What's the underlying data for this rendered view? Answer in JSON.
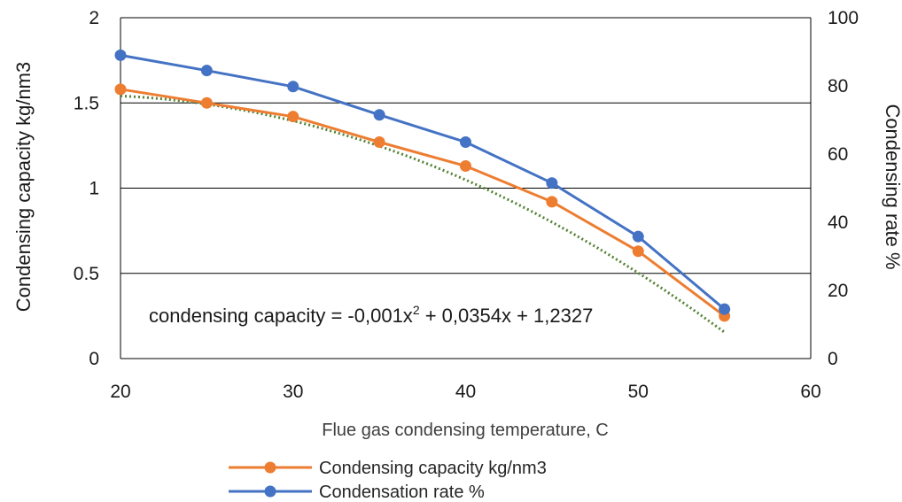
{
  "chart_data": {
    "type": "line",
    "xlabel": "Flue gas condensing temperature, C",
    "ylabel_left": "Condensing capacity kg/nm3",
    "ylabel_right": "Condensing rate %",
    "xlim": [
      20,
      60
    ],
    "ylim_left": [
      0,
      2
    ],
    "ylim_right": [
      0,
      100
    ],
    "x_ticks": [
      "20",
      "30",
      "40",
      "50",
      "60"
    ],
    "y_left_ticks": [
      "0",
      "0.5",
      "1",
      "1.5",
      "2"
    ],
    "y_right_ticks": [
      "0",
      "20",
      "40",
      "60",
      "80",
      "100"
    ],
    "gridlines_left": [
      0.5,
      1.0,
      1.5
    ],
    "x": [
      20,
      25,
      30,
      35,
      40,
      45,
      50,
      55
    ],
    "series": [
      {
        "name": "Condensing capacity kg/nm3",
        "axis": "left",
        "color": "#ED7D31",
        "values": [
          1.58,
          1.5,
          1.42,
          1.27,
          1.13,
          0.92,
          0.63,
          0.25
        ]
      },
      {
        "name": "Condensation rate %",
        "axis": "right",
        "color": "#4472C4",
        "values": [
          89.0,
          84.5,
          79.8,
          71.5,
          63.5,
          51.5,
          35.8,
          14.5
        ]
      }
    ],
    "trendline": {
      "of_series": "Condensing capacity kg/nm3",
      "color": "#548235",
      "style": "dotted",
      "a": -0.001,
      "b": 0.0354,
      "c": 1.2327
    },
    "equation": {
      "prefix": "condensing capacity = -0,001x",
      "superscript": "2",
      "suffix": " + 0,0354x + 1,2327"
    },
    "legend_position": "bottom"
  }
}
